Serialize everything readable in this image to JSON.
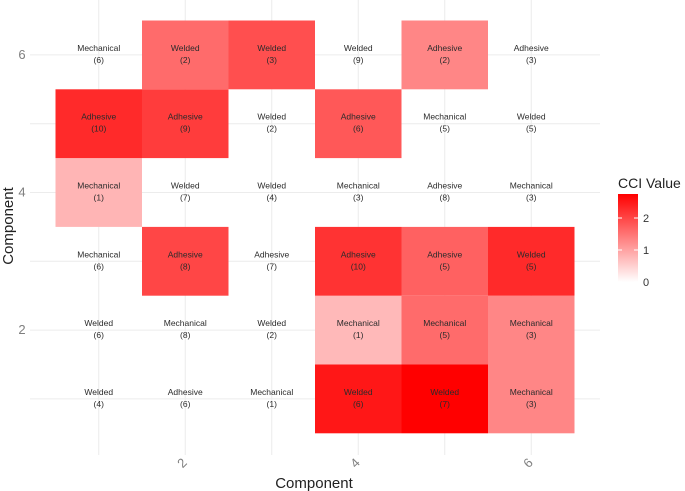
{
  "chart_data": {
    "type": "heatmap",
    "xlabel": "Component",
    "ylabel": "Component",
    "x_categories": [
      1,
      2,
      3,
      4,
      5,
      6
    ],
    "y_categories": [
      1,
      2,
      3,
      4,
      5,
      6
    ],
    "x_tick_labels": [
      "2",
      "4",
      "6"
    ],
    "x_tick_values": [
      2,
      4,
      6
    ],
    "y_tick_labels": [
      "2",
      "4",
      "6"
    ],
    "y_tick_values": [
      2,
      4,
      6
    ],
    "legend": {
      "title": "CCI Value",
      "min": 0,
      "max": 2.75,
      "ticks": [
        0,
        1,
        2
      ],
      "tick_labels": [
        "0",
        "1",
        "2"
      ],
      "low_color": "#ffffff",
      "high_color": "#ff0000",
      "placement": "right"
    },
    "grid": true,
    "cells": [
      {
        "x": 1,
        "y": 1,
        "type": "Welded",
        "count": "(4)",
        "value": 0
      },
      {
        "x": 2,
        "y": 1,
        "type": "Adhesive",
        "count": "(6)",
        "value": 0
      },
      {
        "x": 3,
        "y": 1,
        "type": "Mechanical",
        "count": "(1)",
        "value": 0
      },
      {
        "x": 4,
        "y": 1,
        "type": "Welded",
        "count": "(6)",
        "value": 2.5
      },
      {
        "x": 5,
        "y": 1,
        "type": "Welded",
        "count": "(7)",
        "value": 2.75
      },
      {
        "x": 6,
        "y": 1,
        "type": "Mechanical",
        "count": "(3)",
        "value": 1.3
      },
      {
        "x": 1,
        "y": 2,
        "type": "Welded",
        "count": "(6)",
        "value": 0
      },
      {
        "x": 2,
        "y": 2,
        "type": "Mechanical",
        "count": "(8)",
        "value": 0
      },
      {
        "x": 3,
        "y": 2,
        "type": "Welded",
        "count": "(2)",
        "value": 0
      },
      {
        "x": 4,
        "y": 2,
        "type": "Mechanical",
        "count": "(1)",
        "value": 0.75
      },
      {
        "x": 5,
        "y": 2,
        "type": "Mechanical",
        "count": "(5)",
        "value": 1.6
      },
      {
        "x": 6,
        "y": 2,
        "type": "Mechanical",
        "count": "(3)",
        "value": 1.3
      },
      {
        "x": 1,
        "y": 3,
        "type": "Mechanical",
        "count": "(6)",
        "value": 0
      },
      {
        "x": 2,
        "y": 3,
        "type": "Adhesive",
        "count": "(8)",
        "value": 2.0
      },
      {
        "x": 3,
        "y": 3,
        "type": "Adhesive",
        "count": "(7)",
        "value": 0
      },
      {
        "x": 4,
        "y": 3,
        "type": "Adhesive",
        "count": "(10)",
        "value": 2.2
      },
      {
        "x": 5,
        "y": 3,
        "type": "Adhesive",
        "count": "(5)",
        "value": 1.7
      },
      {
        "x": 6,
        "y": 3,
        "type": "Welded",
        "count": "(5)",
        "value": 2.3
      },
      {
        "x": 1,
        "y": 4,
        "type": "Mechanical",
        "count": "(1)",
        "value": 0.8
      },
      {
        "x": 2,
        "y": 4,
        "type": "Welded",
        "count": "(7)",
        "value": 0
      },
      {
        "x": 3,
        "y": 4,
        "type": "Welded",
        "count": "(4)",
        "value": 0
      },
      {
        "x": 4,
        "y": 4,
        "type": "Mechanical",
        "count": "(3)",
        "value": 0
      },
      {
        "x": 5,
        "y": 4,
        "type": "Adhesive",
        "count": "(8)",
        "value": 0
      },
      {
        "x": 6,
        "y": 4,
        "type": "Mechanical",
        "count": "(3)",
        "value": 0
      },
      {
        "x": 1,
        "y": 5,
        "type": "Adhesive",
        "count": "(10)",
        "value": 2.3
      },
      {
        "x": 2,
        "y": 5,
        "type": "Adhesive",
        "count": "(9)",
        "value": 2.1
      },
      {
        "x": 3,
        "y": 5,
        "type": "Welded",
        "count": "(2)",
        "value": 0
      },
      {
        "x": 4,
        "y": 5,
        "type": "Adhesive",
        "count": "(6)",
        "value": 1.8
      },
      {
        "x": 5,
        "y": 5,
        "type": "Mechanical",
        "count": "(5)",
        "value": 0
      },
      {
        "x": 6,
        "y": 5,
        "type": "Welded",
        "count": "(5)",
        "value": 0
      },
      {
        "x": 1,
        "y": 6,
        "type": "Mechanical",
        "count": "(6)",
        "value": 0
      },
      {
        "x": 2,
        "y": 6,
        "type": "Welded",
        "count": "(2)",
        "value": 1.6
      },
      {
        "x": 3,
        "y": 6,
        "type": "Welded",
        "count": "(3)",
        "value": 1.9
      },
      {
        "x": 4,
        "y": 6,
        "type": "Welded",
        "count": "(9)",
        "value": 0
      },
      {
        "x": 5,
        "y": 6,
        "type": "Adhesive",
        "count": "(2)",
        "value": 1.3
      },
      {
        "x": 6,
        "y": 6,
        "type": "Adhesive",
        "count": "(3)",
        "value": 0
      }
    ]
  }
}
